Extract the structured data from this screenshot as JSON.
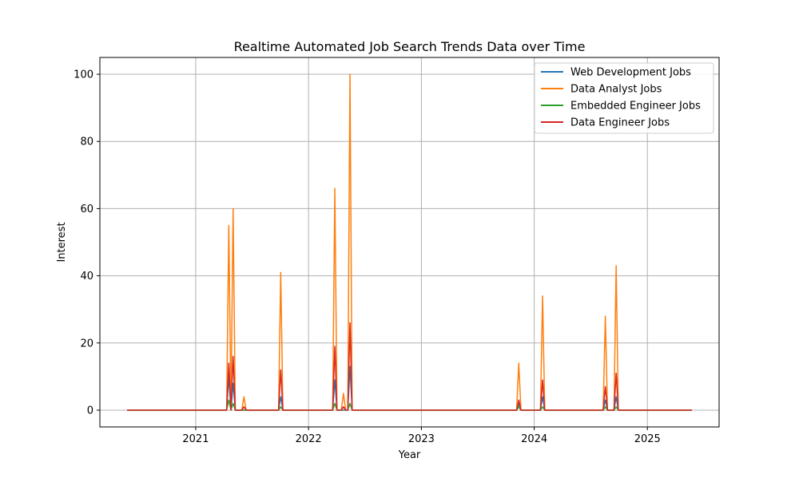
{
  "chart_data": {
    "type": "line",
    "title": "Realtime Automated Job Search Trends Data over Time",
    "xlabel": "Year",
    "ylabel": "Interest",
    "x_start": "2020-05-24",
    "x_end": "2025-05-25",
    "xlim": [
      "2020-02-26",
      "2025-08-21"
    ],
    "ylim": [
      -5,
      105
    ],
    "x_ticks": [
      {
        "date": "2021-01-01",
        "label": "2021"
      },
      {
        "date": "2022-01-01",
        "label": "2022"
      },
      {
        "date": "2023-01-01",
        "label": "2023"
      },
      {
        "date": "2024-01-01",
        "label": "2024"
      },
      {
        "date": "2025-01-01",
        "label": "2025"
      }
    ],
    "y_ticks": [
      0,
      20,
      40,
      60,
      80,
      100
    ],
    "grid": true,
    "legend_position": "top-right",
    "series": [
      {
        "name": "Web Development Jobs",
        "color": "#1f77b4",
        "points": [
          {
            "date": "2021-04-18",
            "value": 10
          },
          {
            "date": "2021-05-02",
            "value": 8
          },
          {
            "date": "2021-10-03",
            "value": 4
          },
          {
            "date": "2022-03-27",
            "value": 9
          },
          {
            "date": "2022-05-15",
            "value": 13
          },
          {
            "date": "2023-11-12",
            "value": 2
          },
          {
            "date": "2024-01-28",
            "value": 4
          },
          {
            "date": "2024-08-18",
            "value": 3
          },
          {
            "date": "2024-09-22",
            "value": 4
          }
        ]
      },
      {
        "name": "Data Analyst Jobs",
        "color": "#ff7f0e",
        "points": [
          {
            "date": "2021-04-18",
            "value": 55
          },
          {
            "date": "2021-05-02",
            "value": 60
          },
          {
            "date": "2021-06-06",
            "value": 4
          },
          {
            "date": "2021-10-03",
            "value": 41
          },
          {
            "date": "2022-03-27",
            "value": 66
          },
          {
            "date": "2022-04-24",
            "value": 5
          },
          {
            "date": "2022-05-15",
            "value": 100
          },
          {
            "date": "2023-11-12",
            "value": 14
          },
          {
            "date": "2024-01-28",
            "value": 34
          },
          {
            "date": "2024-08-18",
            "value": 28
          },
          {
            "date": "2024-09-22",
            "value": 43
          }
        ]
      },
      {
        "name": "Embedded Engineer Jobs",
        "color": "#2ca02c",
        "points": [
          {
            "date": "2021-04-18",
            "value": 3
          },
          {
            "date": "2021-05-02",
            "value": 2
          },
          {
            "date": "2021-10-03",
            "value": 1
          },
          {
            "date": "2022-03-27",
            "value": 2
          },
          {
            "date": "2022-04-24",
            "value": 1
          },
          {
            "date": "2022-05-15",
            "value": 2
          },
          {
            "date": "2023-11-12",
            "value": 1
          },
          {
            "date": "2024-01-28",
            "value": 1
          },
          {
            "date": "2024-08-18",
            "value": 1
          },
          {
            "date": "2024-09-22",
            "value": 1
          }
        ]
      },
      {
        "name": "Data Engineer Jobs",
        "color": "#d62728",
        "points": [
          {
            "date": "2021-04-18",
            "value": 14
          },
          {
            "date": "2021-05-02",
            "value": 16
          },
          {
            "date": "2021-06-06",
            "value": 1
          },
          {
            "date": "2021-10-03",
            "value": 12
          },
          {
            "date": "2022-03-27",
            "value": 19
          },
          {
            "date": "2022-04-24",
            "value": 1
          },
          {
            "date": "2022-05-15",
            "value": 26
          },
          {
            "date": "2023-11-12",
            "value": 3
          },
          {
            "date": "2024-01-28",
            "value": 9
          },
          {
            "date": "2024-08-18",
            "value": 7
          },
          {
            "date": "2024-09-22",
            "value": 11
          }
        ]
      }
    ]
  }
}
